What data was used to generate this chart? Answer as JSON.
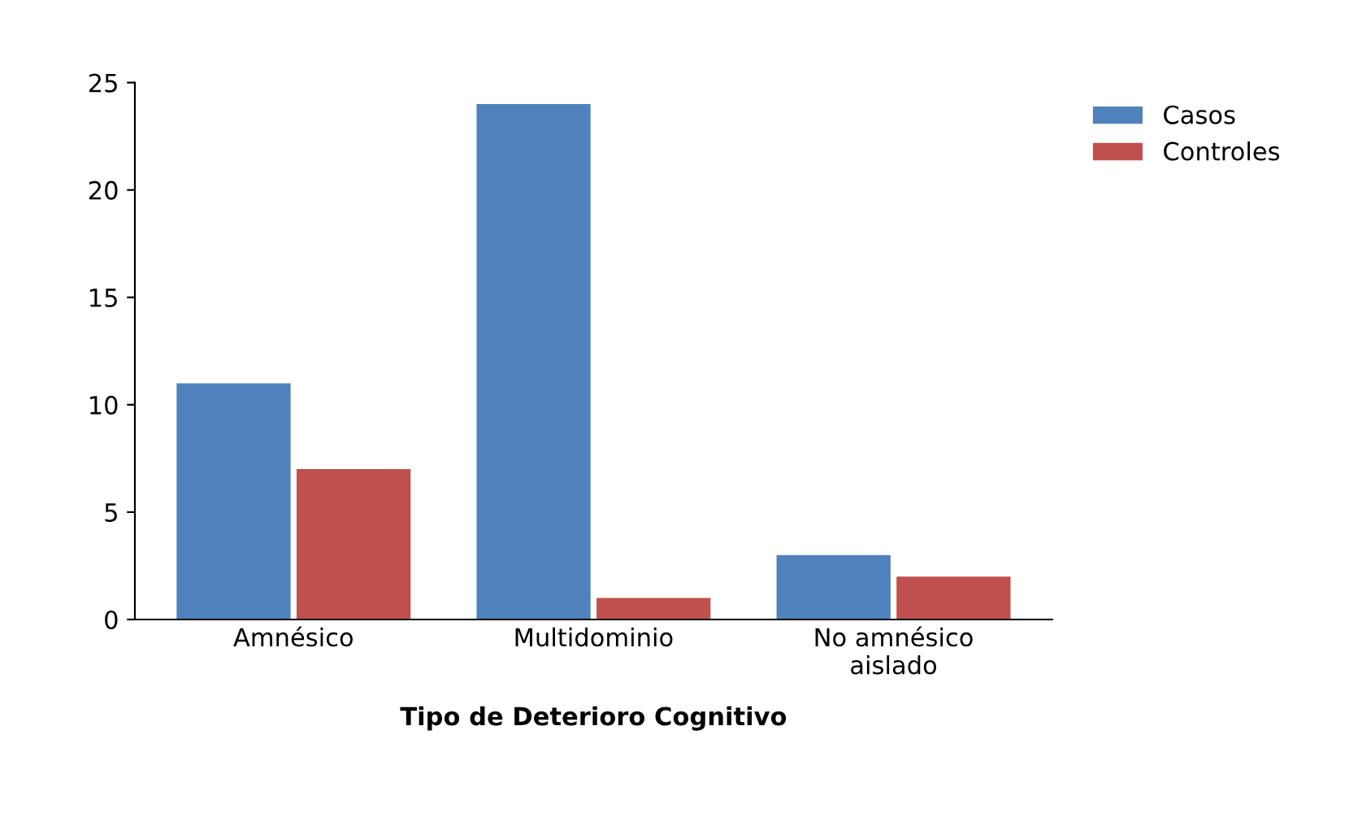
{
  "chart_data": {
    "type": "bar",
    "xlabel": "Tipo de Deterioro Cognitivo",
    "categories": [
      "Amnésico",
      "Multidominio",
      "No amnésico\naislado"
    ],
    "series": [
      {
        "name": "Casos",
        "color": "#4f81bd",
        "values": [
          11,
          24,
          3
        ]
      },
      {
        "name": "Controles",
        "color": "#c0504d",
        "values": [
          7,
          1,
          2
        ]
      }
    ],
    "ylim": [
      0,
      25
    ],
    "yticks": [
      0,
      5,
      10,
      15,
      20,
      25
    ],
    "grid": false,
    "legend": "top right"
  }
}
